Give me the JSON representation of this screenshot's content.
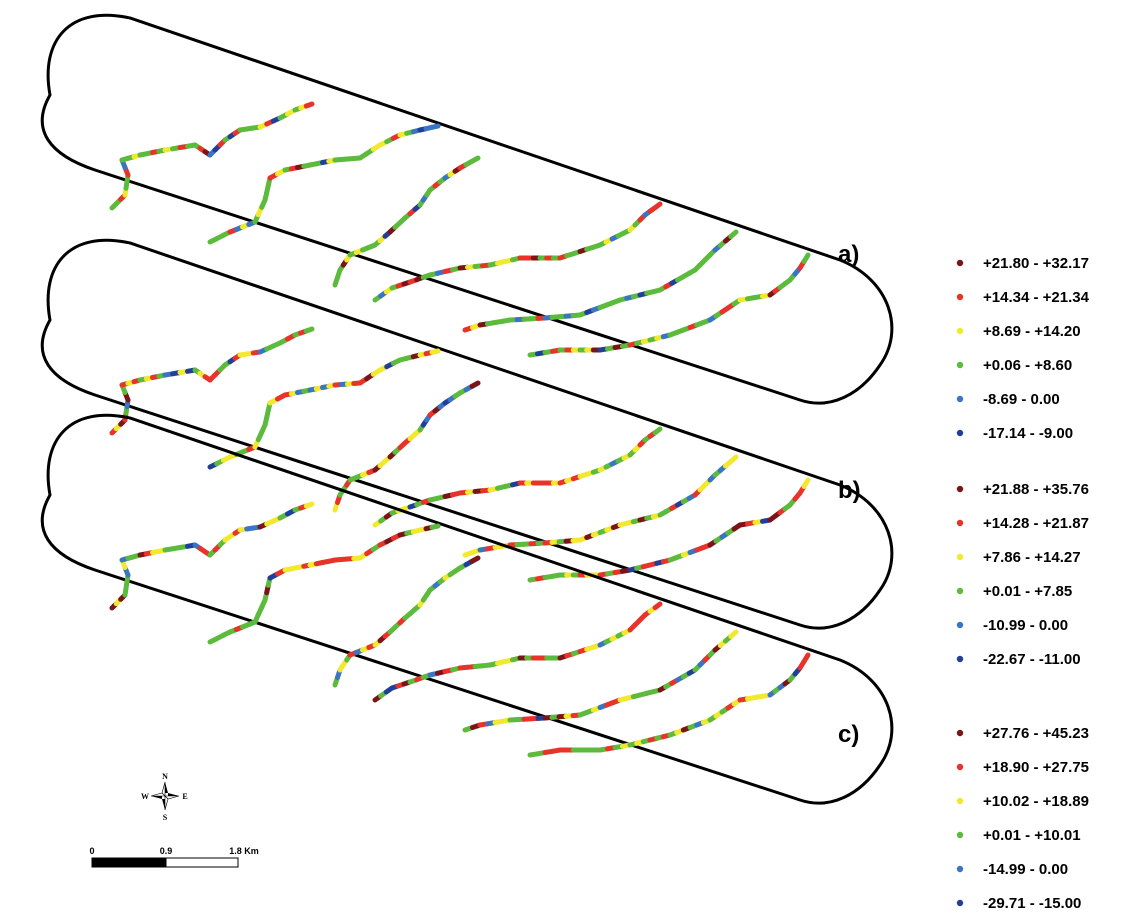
{
  "panels": [
    {
      "label": "a)",
      "legend": [
        {
          "range": "+21.80 - +32.17",
          "color": "#7a1418"
        },
        {
          "range": "+14.34 - +21.34",
          "color": "#e8332a"
        },
        {
          "range": "+8.69 - +14.20",
          "color": "#f2e92e"
        },
        {
          "range": "+0.06 - +8.60",
          "color": "#5cba3c"
        },
        {
          "range": "-8.69 - 0.00",
          "color": "#3a75c4"
        },
        {
          "range": "-17.14 - -9.00",
          "color": "#1f3f9a"
        }
      ]
    },
    {
      "label": "b)",
      "legend": [
        {
          "range": "+21.88 - +35.76",
          "color": "#7a1418"
        },
        {
          "range": "+14.28 - +21.87",
          "color": "#e8332a"
        },
        {
          "range": "+7.86 - +14.27",
          "color": "#f2e92e"
        },
        {
          "range": "+0.01 - +7.85",
          "color": "#5cba3c"
        },
        {
          "range": "-10.99 - 0.00",
          "color": "#3a75c4"
        },
        {
          "range": "-22.67 - -11.00",
          "color": "#1f3f9a"
        }
      ]
    },
    {
      "label": "c)",
      "legend": [
        {
          "range": "+27.76 - +45.23",
          "color": "#7a1418"
        },
        {
          "range": "+18.90 - +27.75",
          "color": "#e8332a"
        },
        {
          "range": "+10.02 - +18.89",
          "color": "#f2e92e"
        },
        {
          "range": "+0.01 - +10.01",
          "color": "#5cba3c"
        },
        {
          "range": "-14.99 - 0.00",
          "color": "#3a75c4"
        },
        {
          "range": "-29.71 - -15.00",
          "color": "#1f3f9a"
        }
      ]
    }
  ],
  "compass": {
    "n": "N",
    "s": "S",
    "e": "E",
    "w": "W"
  },
  "scale_bar": {
    "labels": [
      "0",
      "0.9",
      "1.8 Km"
    ]
  }
}
